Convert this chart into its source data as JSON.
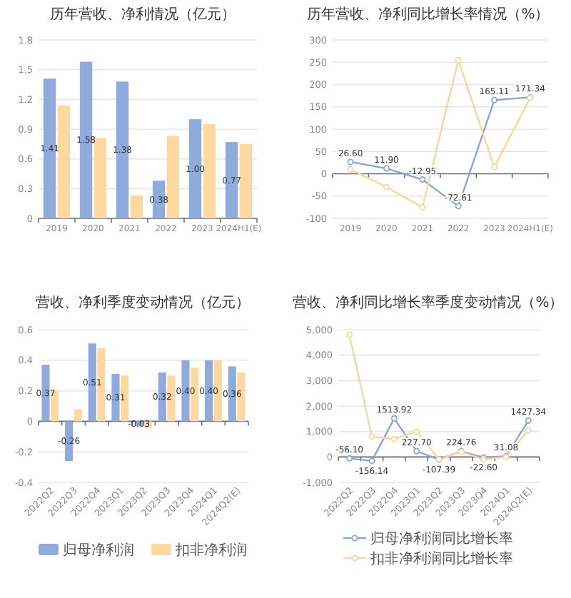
{
  "chart_data": [
    {
      "type": "bar",
      "title": "历年营收、净利情况（亿元）",
      "categories": [
        "2019",
        "2020",
        "2021",
        "2022",
        "2023",
        "2024H1(E)"
      ],
      "series": [
        {
          "color": "#8fabdc",
          "values": [
            1.41,
            1.58,
            1.38,
            0.38,
            1.0,
            0.77
          ],
          "value_labels": [
            "1.41",
            "1.58",
            "1.38",
            "0.38",
            "1.00",
            "0.77"
          ]
        },
        {
          "color": "#fcd9a1",
          "values": [
            1.14,
            0.81,
            0.23,
            0.83,
            0.95,
            0.75
          ]
        }
      ],
      "ylim": [
        0,
        1.8
      ],
      "yticks": [
        0,
        0.3,
        0.6,
        0.9,
        1.2,
        1.5,
        1.8
      ],
      "grid": "y"
    },
    {
      "type": "line",
      "title": "历年营收、净利同比增长率情况（%）",
      "categories": [
        "2019",
        "2020",
        "2021",
        "2022",
        "2023",
        "2024H1(E)"
      ],
      "series": [
        {
          "color": "#8aa5d8",
          "values": [
            26.6,
            11.9,
            -12.95,
            -72.61,
            165.11,
            171.34
          ],
          "value_labels": [
            "26.60",
            "11.90",
            "-12.95",
            "-72.61",
            "165.11",
            "171.34"
          ]
        },
        {
          "color": "#f7d79c",
          "values": [
            10,
            -30,
            -75,
            255,
            15,
            170
          ]
        }
      ],
      "ylim": [
        -100,
        300
      ],
      "yticks": [
        -100,
        -50,
        0,
        50,
        100,
        150,
        200,
        250,
        300
      ],
      "grid": "y",
      "marker": "circle"
    },
    {
      "type": "bar",
      "title": "营收、净利季度变动情况（亿元）",
      "categories": [
        "2022Q2",
        "2022Q3",
        "2022Q4",
        "2023Q1",
        "2023Q2",
        "2023Q3",
        "2023Q4",
        "2024Q1",
        "2024Q2(E)"
      ],
      "series": [
        {
          "name": "归母净利润",
          "color": "#8fabdc",
          "values": [
            0.37,
            -0.26,
            0.51,
            0.31,
            -0.03,
            0.32,
            0.4,
            0.4,
            0.36
          ],
          "value_labels": [
            "0.37",
            "-0.26",
            "0.51",
            "0.31",
            "-0.03",
            "0.32",
            "0.40",
            "0.40",
            "0.36"
          ]
        },
        {
          "name": "扣非净利润",
          "color": "#fcd9a1",
          "values": [
            0.2,
            0.08,
            0.48,
            0.3,
            -0.04,
            0.3,
            0.35,
            0.4,
            0.32
          ]
        }
      ],
      "ylim": [
        -0.4,
        0.6
      ],
      "yticks": [
        -0.4,
        -0.2,
        0,
        0.2,
        0.4,
        0.6
      ],
      "grid": "y",
      "legend": "bottom"
    },
    {
      "type": "line",
      "title": "营收、净利同比增长率季度变动情况（%）",
      "categories": [
        "2022Q2",
        "2022Q3",
        "2022Q4",
        "2023Q1",
        "2023Q2",
        "2023Q3",
        "2023Q4",
        "2024Q1",
        "2024Q2(E)"
      ],
      "series": [
        {
          "name": "归母净利润同比增长率",
          "color": "#8aa5d8",
          "values": [
            -56.1,
            -156.14,
            1513.92,
            227.7,
            -107.39,
            224.76,
            -22.6,
            31.08,
            1427.34
          ],
          "value_labels": [
            "-56.10",
            "-156.14",
            "1513.92",
            "227.70",
            "-107.39",
            "224.76",
            "-22.60",
            "31.08",
            "1427.34"
          ]
        },
        {
          "name": "扣非净利润同比增长率",
          "color": "#f7d79c",
          "values": [
            4800,
            800,
            700,
            1000,
            -100,
            200,
            -100,
            0,
            1050
          ]
        }
      ],
      "ylim": [
        -1000,
        5000
      ],
      "yticks": [
        {
          "value": -1000,
          "label": "-1,000"
        },
        0,
        {
          "value": 1000,
          "label": "1,000"
        },
        {
          "value": 2000,
          "label": "2,000"
        },
        {
          "value": 3000,
          "label": "3,000"
        },
        {
          "value": 4000,
          "label": "4,000"
        },
        {
          "value": 5000,
          "label": "5,000"
        }
      ],
      "grid": "y",
      "marker": "circle",
      "legend": "bottom"
    }
  ]
}
